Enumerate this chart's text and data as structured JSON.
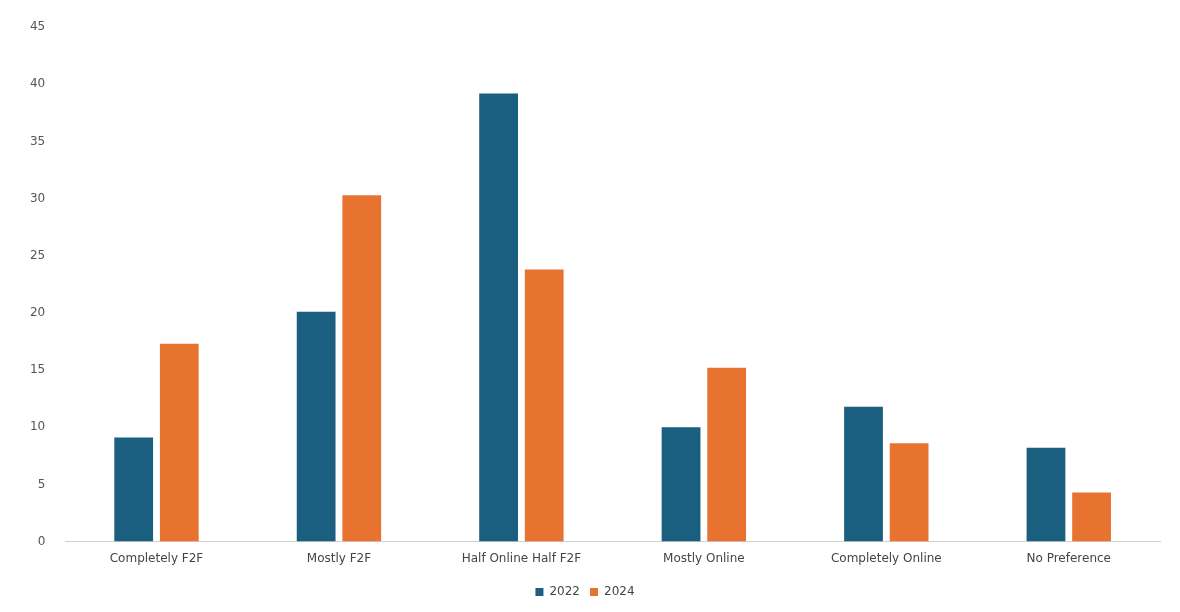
{
  "chart_data": {
    "type": "bar",
    "categories": [
      "Completely F2F",
      "Mostly F2F",
      "Half Online Half F2F",
      "Mostly Online",
      "Completely Online",
      "No Preference"
    ],
    "series": [
      {
        "name": "2022",
        "color": "#1a5e80",
        "values": [
          9.1,
          20.1,
          39.2,
          10.0,
          11.8,
          8.2
        ]
      },
      {
        "name": "2024",
        "color": "#e87331",
        "values": [
          17.3,
          30.3,
          23.8,
          15.2,
          8.6,
          4.3
        ]
      }
    ],
    "ylim": [
      0,
      45
    ],
    "yticks": [
      0,
      5,
      10,
      15,
      20,
      25,
      30,
      35,
      40,
      45
    ],
    "grid": false,
    "legend": "bottom"
  }
}
